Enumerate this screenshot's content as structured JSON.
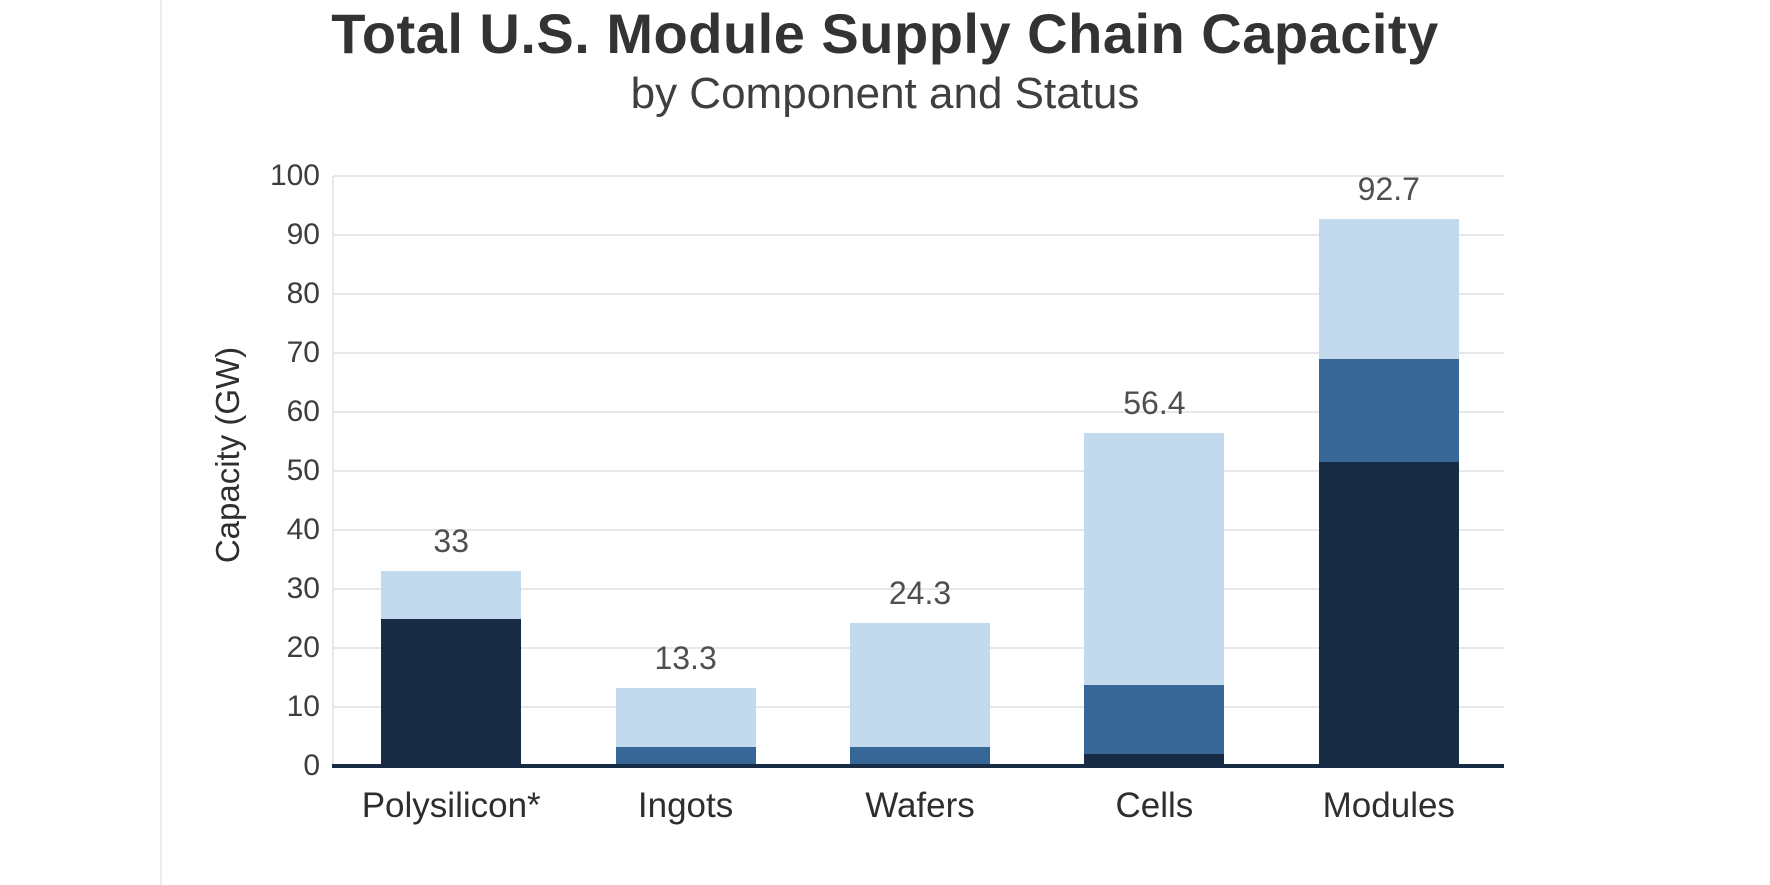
{
  "page": {
    "background_color": "#ffffff",
    "page_edge_line_color": "#ececec"
  },
  "header": {
    "title": "Total U.S. Module Supply Chain Capacity",
    "subtitle": "by Component and Status"
  },
  "chart_data": {
    "type": "bar",
    "stacked": true,
    "title": "Total U.S. Module Supply Chain Capacity",
    "subtitle": "by Component and Status",
    "xlabel": "",
    "ylabel": "Capacity (GW)",
    "ylim": [
      0,
      100
    ],
    "yticks": [
      0,
      10,
      20,
      30,
      40,
      50,
      60,
      70,
      80,
      90,
      100
    ],
    "grid": true,
    "legend": false,
    "categories": [
      "Polysilicon*",
      "Ingots",
      "Wafers",
      "Cells",
      "Modules"
    ],
    "series": [
      {
        "name": "segment-dark-navy",
        "color": "#182B44",
        "values": [
          25,
          0,
          0,
          2,
          51.6
        ]
      },
      {
        "name": "segment-medium-blue",
        "color": "#366796",
        "values": [
          0,
          3.3,
          3.3,
          11.7,
          17.4
        ]
      },
      {
        "name": "segment-light-blue",
        "color": "#C3D9EE",
        "values": [
          8,
          10,
          21,
          42.7,
          23.7
        ]
      }
    ],
    "totals": [
      33,
      13.3,
      24.3,
      56.4,
      92.7
    ],
    "total_labels": [
      "33",
      "13.3",
      "24.3",
      "56.4",
      "92.7"
    ],
    "colors": {
      "gridline": "#e7e7e7",
      "axis_line": "#182B44",
      "tick_text": "#3d3d3d",
      "label_text": "#4f4f4f"
    }
  }
}
